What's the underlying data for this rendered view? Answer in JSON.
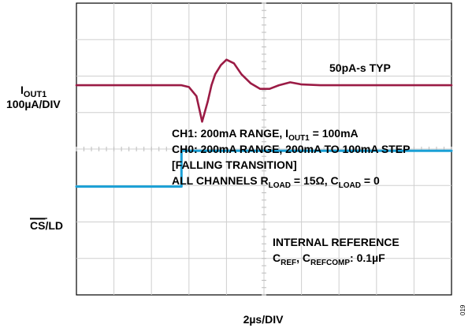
{
  "chart_data": {
    "type": "line",
    "grid": true,
    "xlabel": "2µs/DIV",
    "figure_id": "019",
    "x_divisions": 10,
    "y_divisions": 8,
    "channel_labels": {
      "iout": {
        "main": "I",
        "sub": "OUT1",
        "scale": "100µA/DIV"
      },
      "cs": {
        "overline": "CS",
        "rest": "/LD"
      }
    },
    "annotations": {
      "typ": "50pA-s TYP",
      "line1": {
        "a": "CH1: 200mA RANGE, I",
        "sub": "OUT1",
        "b": " = 100mA"
      },
      "line2": "CH0: 200mA RANGE, 200mA TO 100mA STEP",
      "line3": "[FALLING TRANSITION]",
      "line4": {
        "a": "ALL CHANNELS R",
        "sub1": "LOAD",
        "b": " = 15Ω, C",
        "sub2": "LOAD",
        "c": " = 0"
      },
      "ref1": "INTERNAL REFERENCE",
      "ref2": {
        "a": "C",
        "sub1": "REF",
        "b": ", C",
        "sub2": "REFCOMP",
        "c": ": 0.1µF"
      }
    },
    "series": [
      {
        "color": "#9b1b45",
        "baseline_div": 5.75,
        "x": [
          0,
          2.8,
          3.0,
          3.2,
          3.35,
          3.5,
          3.6,
          3.7,
          3.85,
          4.0,
          4.2,
          4.4,
          4.65,
          4.9,
          5.15,
          5.4,
          5.7,
          6.0,
          6.5,
          10
        ],
        "y": [
          0,
          0,
          -0.05,
          -0.3,
          -1.0,
          -0.45,
          0.0,
          0.3,
          0.55,
          0.7,
          0.6,
          0.3,
          0.05,
          -0.1,
          -0.1,
          0.0,
          0.08,
          0.02,
          0,
          0
        ]
      },
      {
        "color": "#1aa0d6",
        "x": [
          0,
          2.8,
          2.8,
          10
        ],
        "y": [
          2.97,
          2.97,
          3.95,
          3.95
        ]
      }
    ]
  }
}
